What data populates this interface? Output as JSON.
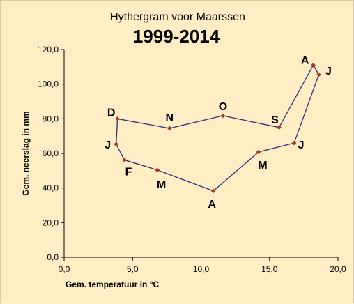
{
  "chart_data": {
    "type": "line",
    "title": "Hythergram voor Maarssen",
    "subtitle": "1999-2014",
    "xlabel": "Gem. temperatuur in °C",
    "ylabel": "Gem. neerslag in mm",
    "xlim": [
      0,
      20
    ],
    "ylim": [
      0,
      120
    ],
    "x_ticks": [
      "0,0",
      "5,0",
      "10,0",
      "15,0",
      "20,0"
    ],
    "y_ticks": [
      "0,0",
      "20,0",
      "40,0",
      "60,0",
      "80,0",
      "100,0",
      "120,0"
    ],
    "grid": false,
    "series_color": "#2f2a7a",
    "marker_color": "#b5361b",
    "points": [
      {
        "label": "J",
        "x": 3.8,
        "y": 65.3
      },
      {
        "label": "F",
        "x": 4.4,
        "y": 56.2
      },
      {
        "label": "M",
        "x": 6.8,
        "y": 50.4
      },
      {
        "label": "A",
        "x": 10.9,
        "y": 38.3
      },
      {
        "label": "M",
        "x": 14.2,
        "y": 60.8
      },
      {
        "label": "J",
        "x": 16.8,
        "y": 66.0
      },
      {
        "label": "J",
        "x": 18.6,
        "y": 105.5
      },
      {
        "label": "A",
        "x": 18.2,
        "y": 111.0
      },
      {
        "label": "S",
        "x": 15.7,
        "y": 75.0
      },
      {
        "label": "O",
        "x": 11.6,
        "y": 81.8
      },
      {
        "label": "N",
        "x": 7.7,
        "y": 74.5
      },
      {
        "label": "D",
        "x": 3.9,
        "y": 80.0
      }
    ]
  }
}
